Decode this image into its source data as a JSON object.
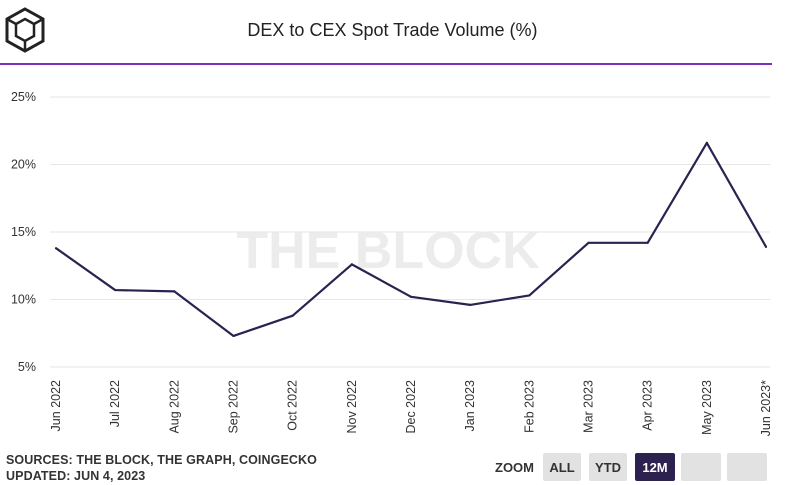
{
  "header": {
    "title": "DEX to CEX Spot Trade Volume (%)"
  },
  "watermark": "THE BLOCK",
  "footer": {
    "sources": "SOURCES: THE BLOCK, THE GRAPH, COINGECKO",
    "updated": "UPDATED: JUN 4, 2023"
  },
  "zoom": {
    "label": "ZOOM",
    "buttons": [
      "ALL",
      "YTD",
      "12M",
      "",
      ""
    ],
    "active": "12M"
  },
  "colors": {
    "line": "#2d2150",
    "accent_rule": "#7b2fbe",
    "grid": "#e6e6e6",
    "watermark": "#ececec"
  },
  "chart_data": {
    "type": "line",
    "title": "DEX to CEX Spot Trade Volume (%)",
    "categories": [
      "Jun 2022",
      "Jul 2022",
      "Aug 2022",
      "Sep 2022",
      "Oct 2022",
      "Nov 2022",
      "Dec 2022",
      "Jan 2023",
      "Feb 2023",
      "Mar 2023",
      "Apr 2023",
      "May 2023",
      "Jun 2023*"
    ],
    "values": [
      13.8,
      10.7,
      10.6,
      7.3,
      8.8,
      12.6,
      10.2,
      9.6,
      10.3,
      14.2,
      14.2,
      21.6,
      13.9
    ],
    "yticks": [
      5,
      10,
      15,
      20,
      25
    ],
    "ytick_labels": [
      "5%",
      "10%",
      "15%",
      "20%",
      "25%"
    ],
    "ylim": [
      5,
      25
    ],
    "grid": true,
    "legend": "none"
  }
}
